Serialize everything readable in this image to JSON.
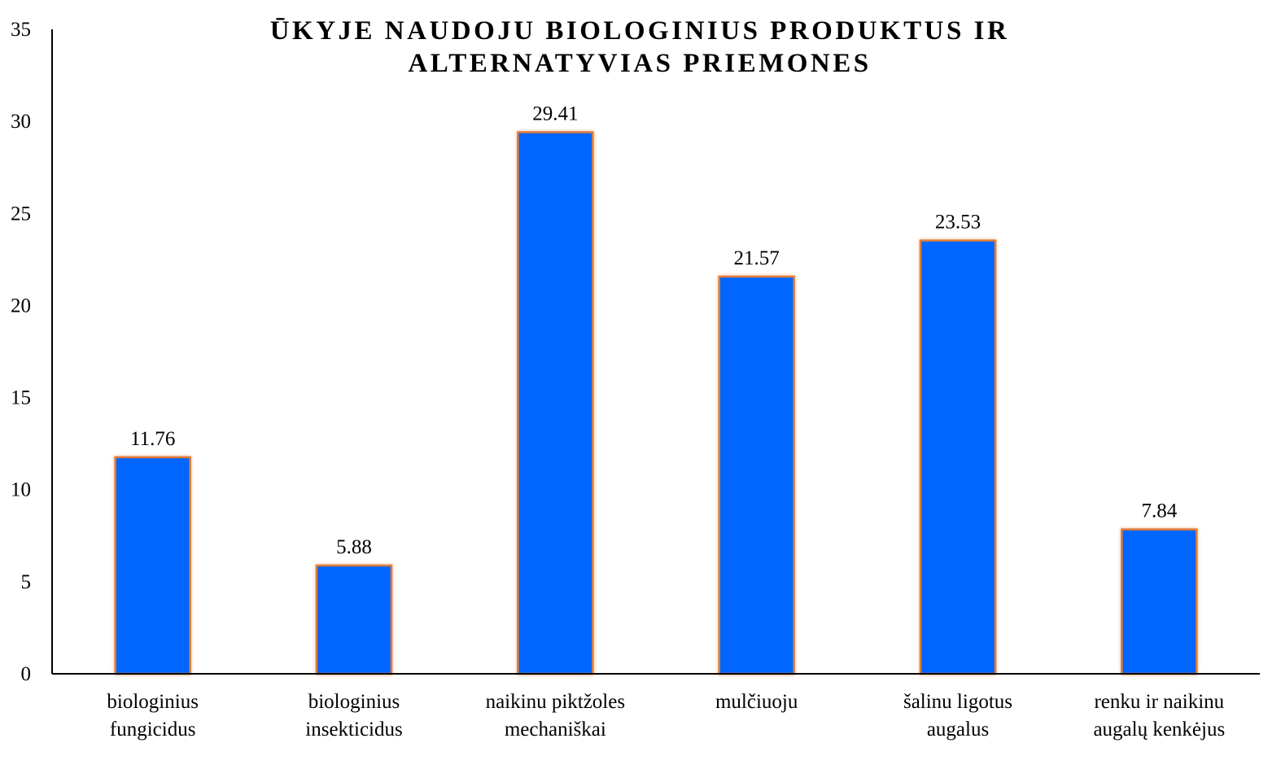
{
  "chart_data": {
    "type": "bar",
    "title_lines": [
      "ŪKYJE NAUDOJU BIOLOGINIUS PRODUKTUS IR",
      "ALTERNATYVIAS PRIEMONES"
    ],
    "categories": [
      [
        "biologinius",
        "fungicidus"
      ],
      [
        "biologinius",
        "insekticidus"
      ],
      [
        "naikinu piktžoles",
        "mechaniškai"
      ],
      [
        "mulčiuoju"
      ],
      [
        "šalinu ligotus",
        "augalus"
      ],
      [
        "renku ir naikinu",
        "augalų kenkėjus"
      ]
    ],
    "values": [
      11.76,
      5.88,
      29.41,
      21.57,
      23.53,
      7.84
    ],
    "data_labels": [
      "11.76",
      "5.88",
      "29.41",
      "21.57",
      "23.53",
      "7.84"
    ],
    "ylim": [
      0,
      35
    ],
    "yticks": [
      0,
      5,
      10,
      15,
      20,
      25,
      30,
      35
    ],
    "grid": false,
    "legend": "none",
    "bar_fill": "#0066ff",
    "bar_stroke": "#e07b39"
  }
}
